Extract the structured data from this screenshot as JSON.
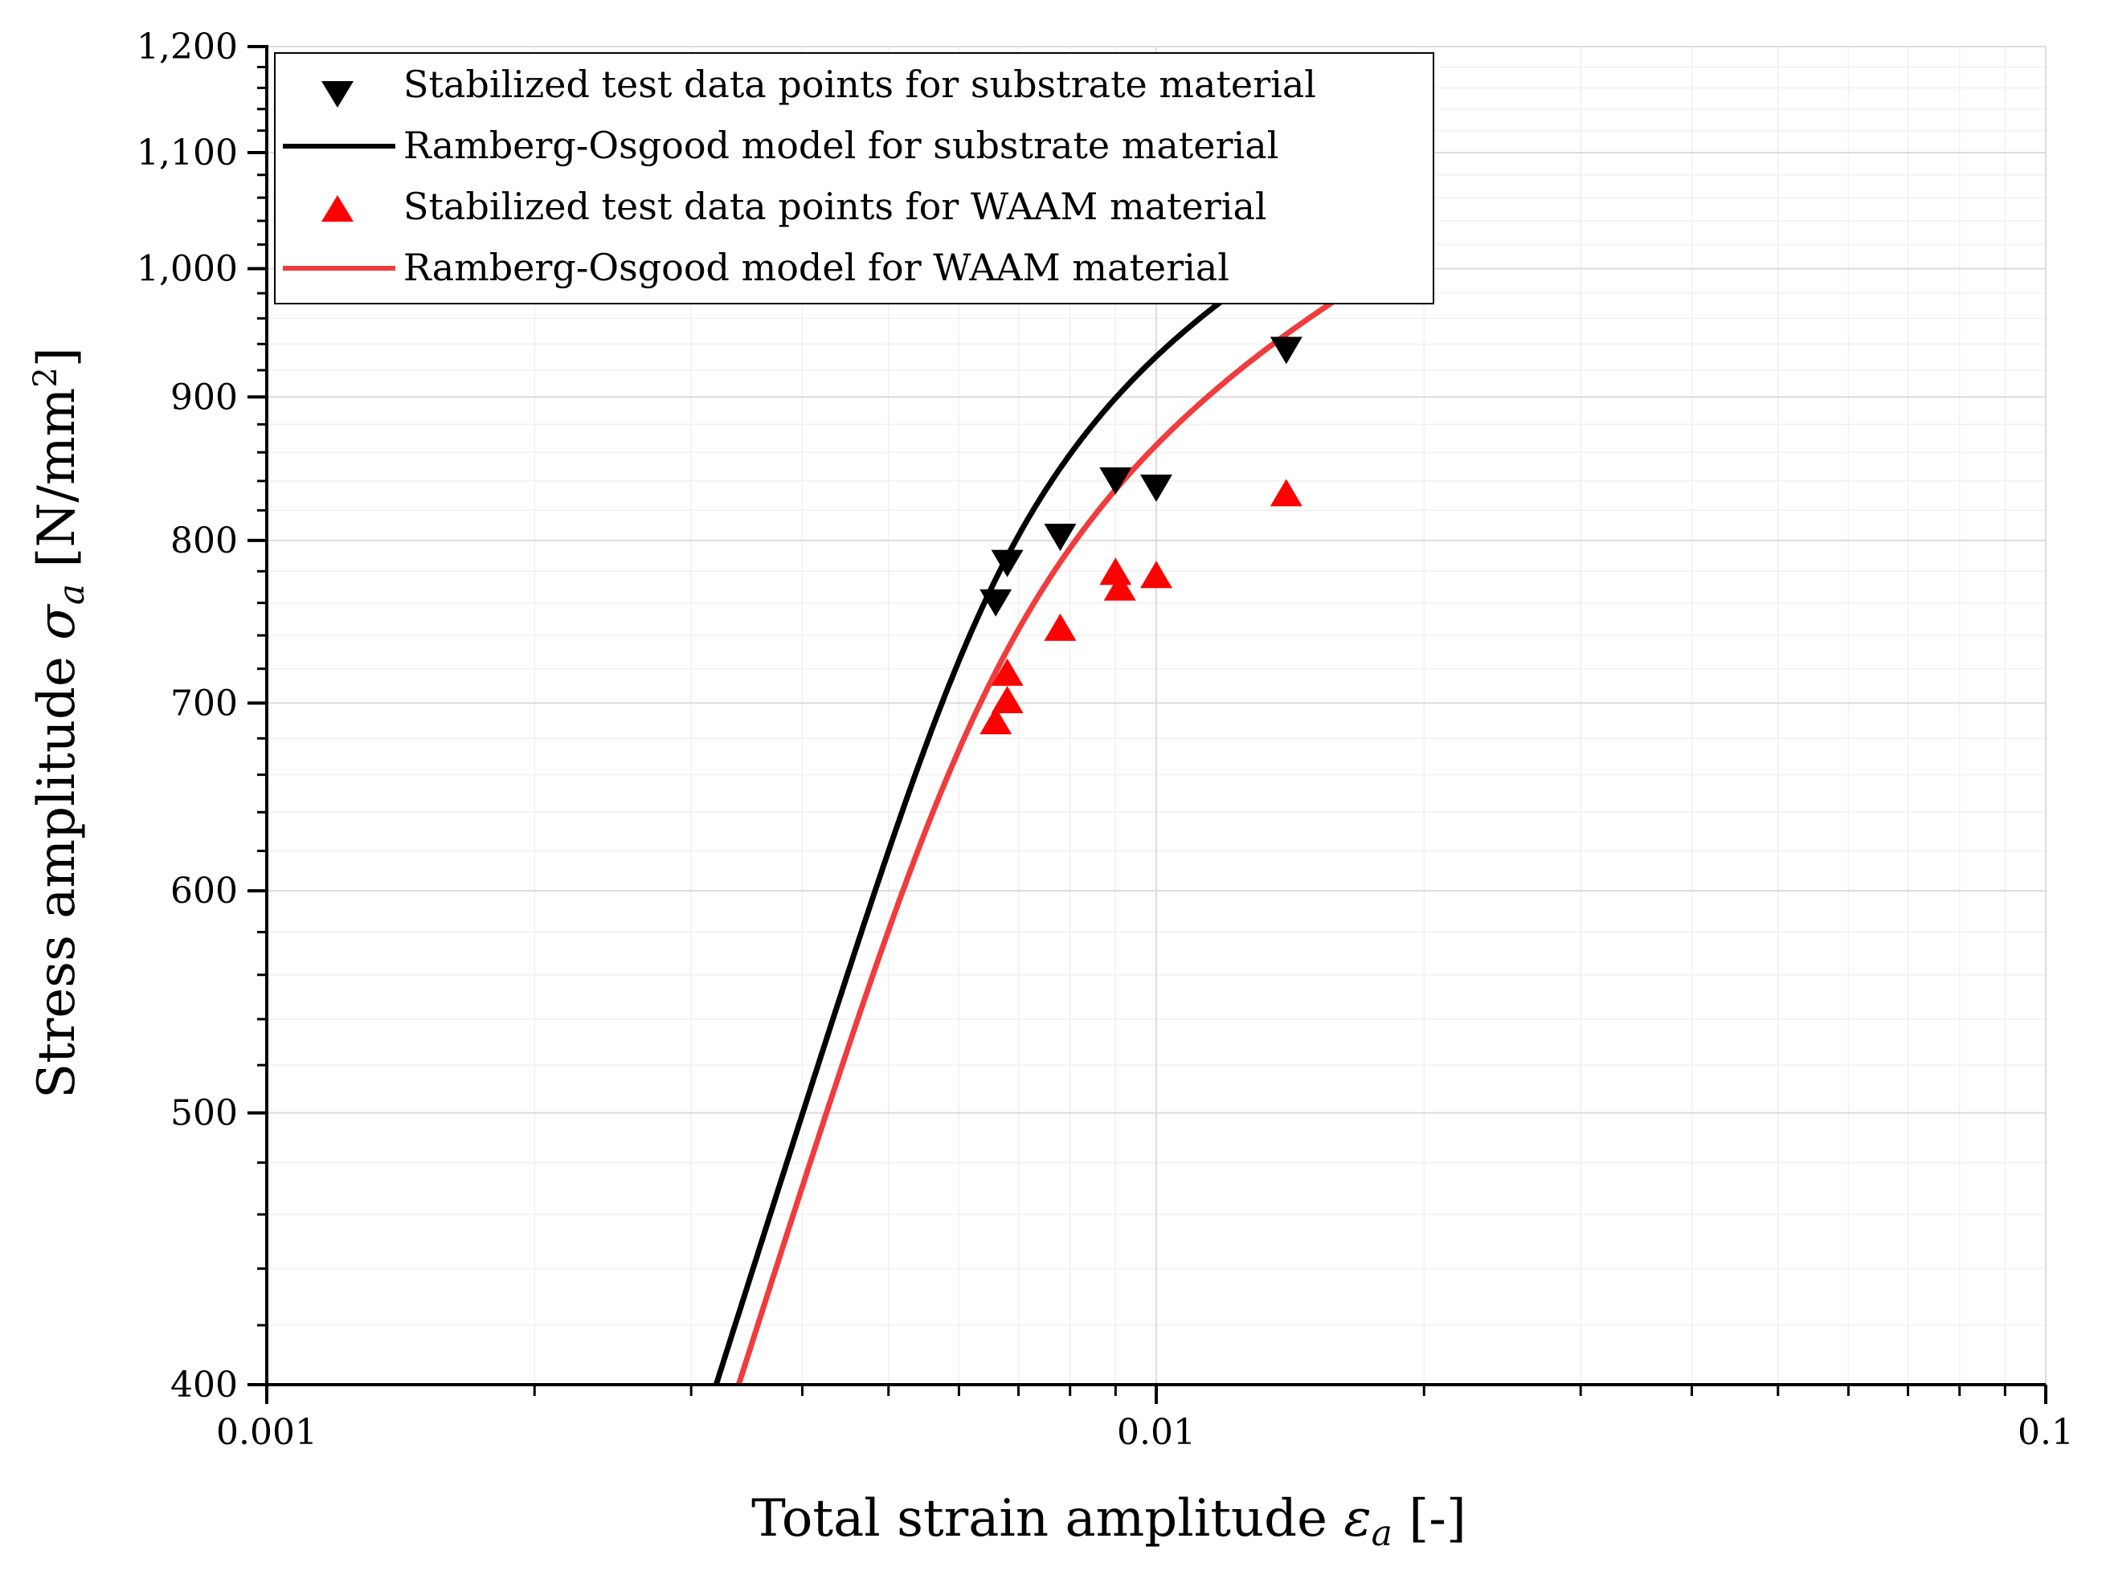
{
  "chart_data": {
    "type": "scatter",
    "title": "",
    "xlabel": "Total strain amplitude",
    "xlabel_symbol": "ε",
    "xlabel_sub": "a",
    "xlabel_unit": "[-]",
    "ylabel": "Stress amplitude",
    "ylabel_symbol": "σ",
    "ylabel_sub": "a",
    "ylabel_unit": "[N/mm",
    "ylabel_unit_sup": "2",
    "ylabel_unit_close": "]",
    "xscale": "log",
    "yscale": "log",
    "xlim": [
      0.001,
      0.1
    ],
    "ylim": [
      400,
      1200
    ],
    "xticks": [
      0.001,
      0.01,
      0.1
    ],
    "xtick_labels": [
      "0.001",
      "0.01",
      "0.1"
    ],
    "yticks": [
      400,
      500,
      600,
      700,
      800,
      900,
      1000,
      1100,
      1200
    ],
    "ytick_labels": [
      "400",
      "500",
      "600",
      "700",
      "800",
      "900",
      "1,000",
      "1,100",
      "1,200"
    ],
    "grid": true,
    "legend_position": "top-left",
    "series": [
      {
        "name": "Stabilized test data points for substrate material",
        "kind": "scatter",
        "marker": "triangle-down",
        "color": "#000000",
        "x": [
          0.0066,
          0.0068,
          0.0078,
          0.009,
          0.01,
          0.014
        ],
        "y": [
          760,
          785,
          802,
          840,
          835,
          935
        ]
      },
      {
        "name": "Ramberg-Osgood model for substrate material",
        "kind": "line",
        "color": "#000000",
        "E": 125000,
        "K": 1675,
        "n": 0.0985,
        "y_range": [
          400,
          1060
        ]
      },
      {
        "name": "Stabilized test data points for WAAM material",
        "kind": "scatter",
        "marker": "triangle-up",
        "color": "#ff0000",
        "x": [
          0.0066,
          0.0068,
          0.0068,
          0.0078,
          0.009,
          0.0091,
          0.01,
          0.014
        ],
        "y": [
          690,
          718,
          702,
          745,
          780,
          770,
          778,
          832
        ]
      },
      {
        "name": "Ramberg-Osgood model for WAAM material",
        "kind": "line",
        "color": "#f03c3c",
        "E": 118000,
        "K": 1690,
        "n": 0.113,
        "y_range": [
          400,
          1015
        ]
      }
    ]
  }
}
